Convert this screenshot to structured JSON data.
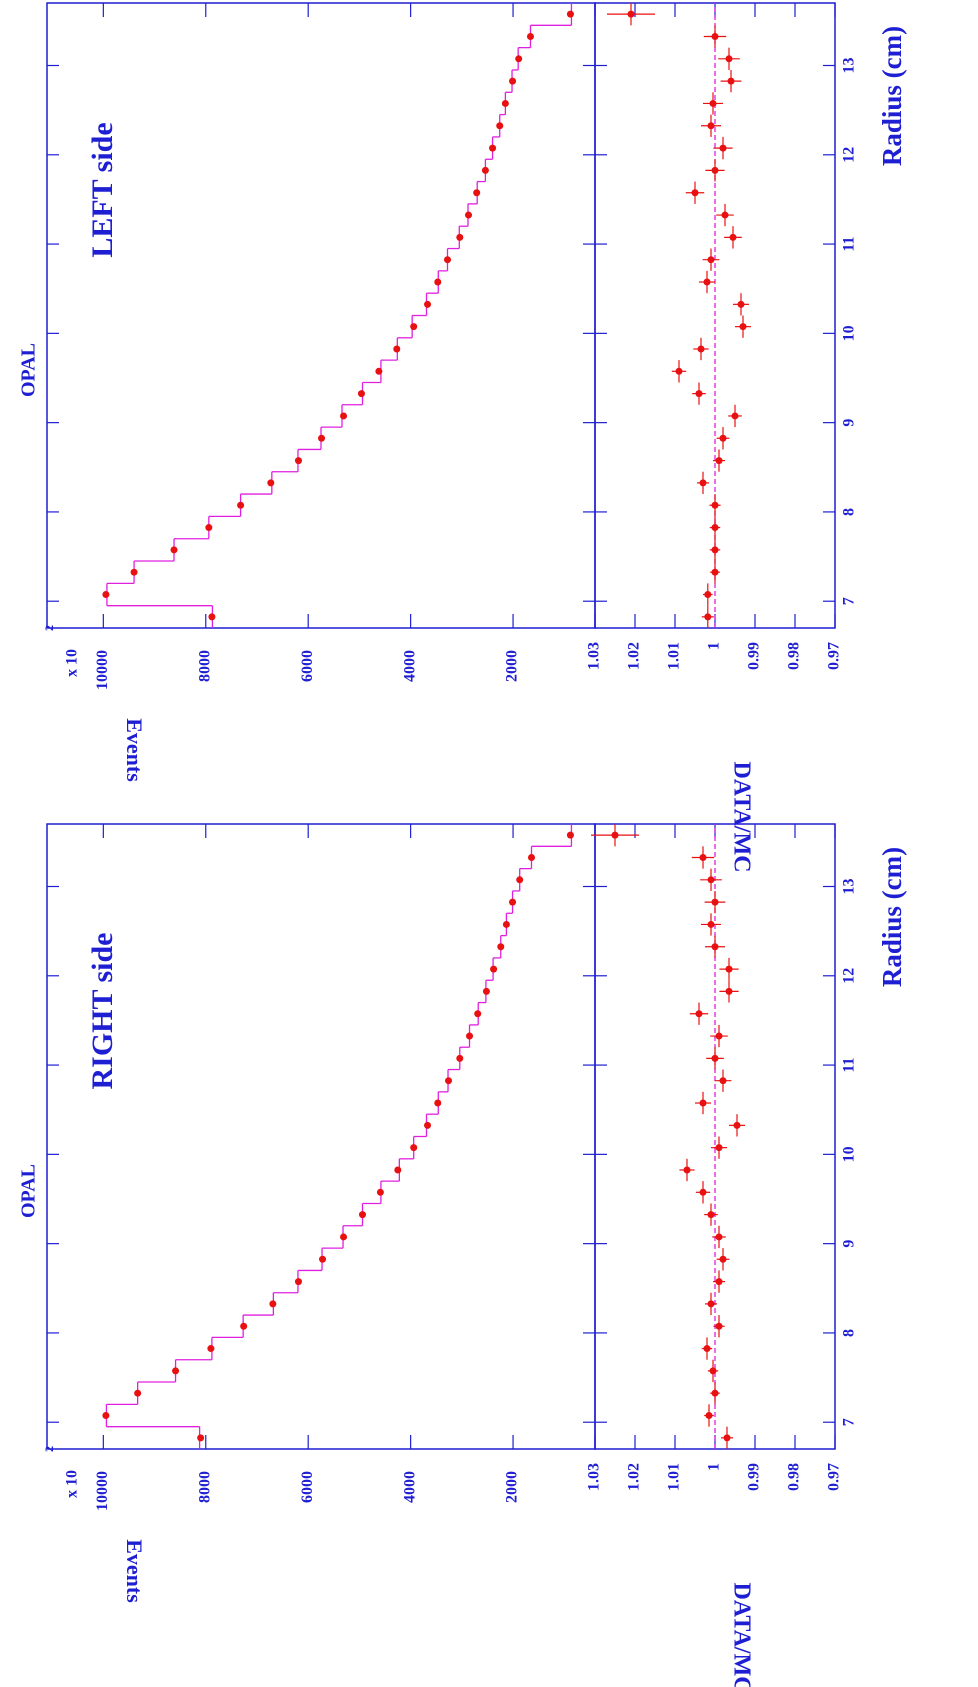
{
  "chart_data": [
    {
      "type": "step",
      "title": "OPAL",
      "annotation": "LEFT side",
      "xlabel": "Radius (cm)",
      "ylabel": "Events",
      "y_multiplier": "x 10",
      "y_multiplier_exp": "2",
      "ratio_label": "DATA/MC",
      "xlim": [
        6.7,
        13.7
      ],
      "xticks": [
        7,
        8,
        9,
        10,
        11,
        12,
        13
      ],
      "ylim": [
        400,
        11100
      ],
      "yticks": [
        2000,
        4000,
        6000,
        8000,
        10000
      ],
      "ratio_ylim": [
        0.97,
        1.03
      ],
      "ratio_yticks": [
        0.97,
        0.98,
        0.99,
        1,
        1.01,
        1.02,
        1.03
      ],
      "ratio_reference": 1,
      "x": [
        6.825,
        7.075,
        7.325,
        7.575,
        7.825,
        8.075,
        8.325,
        8.575,
        8.825,
        9.075,
        9.325,
        9.575,
        9.825,
        10.075,
        10.325,
        10.575,
        10.825,
        11.075,
        11.325,
        11.575,
        11.825,
        12.075,
        12.325,
        12.575,
        12.825,
        13.075,
        13.325,
        13.575
      ],
      "mc": {
        "color": "#e020e0",
        "values": [
          7870,
          9930,
          9400,
          8620,
          7940,
          7320,
          6710,
          6200,
          5750,
          5340,
          4940,
          4580,
          4260,
          3970,
          3690,
          3460,
          3280,
          3050,
          2880,
          2700,
          2540,
          2400,
          2260,
          2150,
          2020,
          1900,
          1660,
          860
        ]
      },
      "data": {
        "color": "#e81010",
        "values": [
          7880,
          9950,
          9400,
          8620,
          7940,
          7320,
          6730,
          6190,
          5740,
          5310,
          4960,
          4620,
          4270,
          3940,
          3670,
          3470,
          3280,
          3040,
          2870,
          2710,
          2540,
          2400,
          2260,
          2150,
          2010,
          1890,
          1660,
          880
        ]
      },
      "ratio": {
        "color": "#e81010",
        "values": [
          1.0018,
          1.0018,
          1.0,
          1.0,
          1.0,
          1.0,
          1.003,
          0.999,
          0.998,
          0.995,
          1.004,
          1.009,
          1.0035,
          0.993,
          0.9935,
          1.002,
          1.001,
          0.9955,
          0.9975,
          1.005,
          1.0,
          0.998,
          1.001,
          1.0005,
          0.996,
          0.9965,
          1.0,
          1.021
        ],
        "errors": [
          0.0015,
          0.0012,
          0.0012,
          0.0013,
          0.0013,
          0.0014,
          0.0015,
          0.0015,
          0.0016,
          0.0017,
          0.0017,
          0.0018,
          0.0019,
          0.002,
          0.002,
          0.002,
          0.0021,
          0.0022,
          0.0022,
          0.0023,
          0.0024,
          0.0024,
          0.0025,
          0.0025,
          0.0026,
          0.0027,
          0.0028,
          0.006
        ]
      }
    },
    {
      "type": "step",
      "title": "OPAL",
      "annotation": "RIGHT side",
      "xlabel": "Radius (cm)",
      "ylabel": "Events",
      "y_multiplier": "x 10",
      "y_multiplier_exp": "2",
      "ratio_label": "DATA/MC",
      "xlim": [
        6.7,
        13.7
      ],
      "xticks": [
        7,
        8,
        9,
        10,
        11,
        12,
        13
      ],
      "ylim": [
        400,
        11100
      ],
      "yticks": [
        2000,
        4000,
        6000,
        8000,
        10000
      ],
      "ratio_ylim": [
        0.97,
        1.03
      ],
      "ratio_yticks": [
        0.97,
        0.98,
        0.99,
        1,
        1.01,
        1.02,
        1.03
      ],
      "ratio_reference": 1,
      "x": [
        6.825,
        7.075,
        7.325,
        7.575,
        7.825,
        8.075,
        8.325,
        8.575,
        8.825,
        9.075,
        9.325,
        9.575,
        9.825,
        10.075,
        10.325,
        10.575,
        10.825,
        11.075,
        11.325,
        11.575,
        11.825,
        12.075,
        12.325,
        12.575,
        12.825,
        13.075,
        13.325,
        13.575
      ],
      "mc": {
        "color": "#e020e0",
        "values": [
          8120,
          9940,
          9330,
          8590,
          7880,
          7270,
          6680,
          6200,
          5730,
          5320,
          4940,
          4580,
          4220,
          3940,
          3690,
          3460,
          3270,
          3040,
          2850,
          2680,
          2530,
          2390,
          2240,
          2130,
          2010,
          1870,
          1640,
          860
        ]
      },
      "data": {
        "color": "#e81010",
        "values": [
          8100,
          9950,
          9330,
          8590,
          7900,
          7260,
          6690,
          6190,
          5720,
          5310,
          4940,
          4590,
          4250,
          3940,
          3670,
          3470,
          3260,
          3040,
          2850,
          2690,
          2520,
          2380,
          2240,
          2130,
          2010,
          1870,
          1640,
          880
        ]
      },
      "ratio": {
        "color": "#e81010",
        "values": [
          0.997,
          1.0015,
          1.0,
          1.0005,
          1.002,
          0.999,
          1.001,
          0.999,
          0.998,
          0.999,
          1.001,
          1.003,
          1.007,
          0.999,
          0.9945,
          1.003,
          0.998,
          1.0,
          0.999,
          1.004,
          0.9965,
          0.9965,
          1.0,
          1.001,
          1.0,
          1.001,
          1.003,
          1.025
        ],
        "errors": [
          0.0015,
          0.0012,
          0.0012,
          0.0013,
          0.0013,
          0.0014,
          0.0015,
          0.0015,
          0.0016,
          0.0017,
          0.0017,
          0.0018,
          0.0019,
          0.002,
          0.002,
          0.002,
          0.0021,
          0.0022,
          0.0022,
          0.0023,
          0.0024,
          0.0024,
          0.0025,
          0.0025,
          0.0026,
          0.0027,
          0.0028,
          0.006
        ]
      }
    }
  ]
}
